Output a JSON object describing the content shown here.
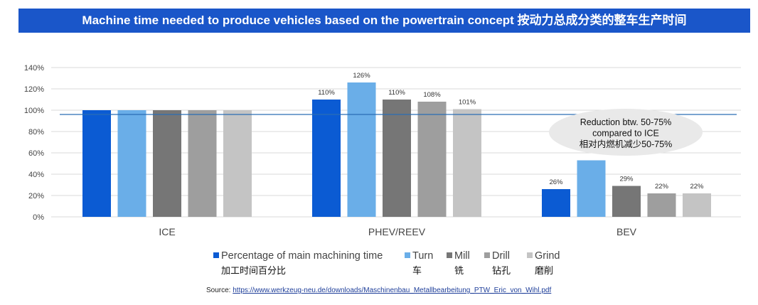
{
  "title": "Machine time needed to produce vehicles based on the powertrain concept 按动力总成分类的整车生产时间",
  "source": {
    "label": "Source:",
    "url": "https://www.werkzeug-neu.de/downloads/Maschinenbau_Metallbearbeitung_PTW_Eric_von_Wihl.pdf"
  },
  "annotation": {
    "lines": [
      "Reduction btw. 50-75%",
      "compared to ICE",
      "相对内燃机减少50-75%"
    ]
  },
  "colors": {
    "title_bg": "#1a56c9",
    "reference_line": "#2a6db5",
    "grid": "#d9d9d9",
    "annotation_bubble": "#e9e9e9"
  },
  "chart_data": {
    "type": "bar",
    "categories": [
      "ICE",
      "PHEV/REEV",
      "BEV"
    ],
    "series": [
      {
        "name": "Percentage of main machining time",
        "name_cn": "加工时间百分比",
        "color": "#0b5bd3",
        "values": [
          100,
          110,
          26
        ],
        "labels": [
          "",
          "110%",
          "26%"
        ]
      },
      {
        "name": "Turn",
        "name_cn": "车",
        "color": "#6aaee8",
        "values": [
          100,
          126,
          53
        ],
        "labels": [
          "",
          "126%",
          ""
        ]
      },
      {
        "name": "Mill",
        "name_cn": "铣",
        "color": "#767676",
        "values": [
          100,
          110,
          29
        ],
        "labels": [
          "",
          "110%",
          "29%"
        ]
      },
      {
        "name": "Drill",
        "name_cn": "钻孔",
        "color": "#9e9e9e",
        "values": [
          100,
          108,
          22
        ],
        "labels": [
          "",
          "108%",
          "22%"
        ]
      },
      {
        "name": "Grind",
        "name_cn": "磨削",
        "color": "#c4c4c4",
        "values": [
          100,
          101,
          22
        ],
        "labels": [
          "",
          "101%",
          "22%"
        ]
      }
    ],
    "yticks": [
      "0%",
      "20%",
      "40%",
      "60%",
      "80%",
      "100%",
      "120%",
      "140%"
    ],
    "ylim": [
      0,
      140
    ],
    "reference_line": 96,
    "grid": true,
    "legend_position": "bottom"
  }
}
